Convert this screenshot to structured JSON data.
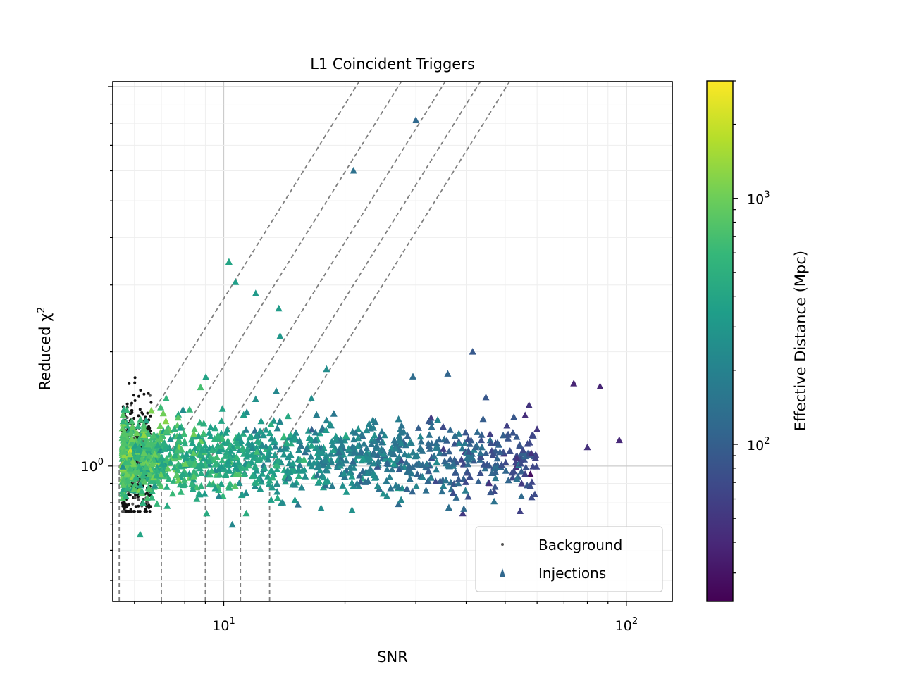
{
  "chart_data": {
    "type": "scatter",
    "title": "L1 Coincident Triggers",
    "xlabel": "SNR",
    "ylabel_main": "Reduced χ",
    "ylabel_sup": "2",
    "x_scale": "log",
    "y_scale": "log",
    "xlim": [
      5.3,
      130
    ],
    "ylim": [
      0.44,
      10.3
    ],
    "grid": true,
    "x_ticks": [
      {
        "value": 10,
        "base": "10",
        "exp": "1"
      },
      {
        "value": 100,
        "base": "10",
        "exp": "2"
      }
    ],
    "y_ticks": [
      {
        "value": 1,
        "base": "10",
        "exp": "0"
      }
    ],
    "legend": {
      "position": "lower right",
      "entries": [
        {
          "label": "Background",
          "marker": "dot",
          "color": "#555555"
        },
        {
          "label": "Injections",
          "marker": "triangle",
          "color": "#31688e"
        }
      ]
    },
    "colorbar": {
      "label": "Effective Distance (Mpc)",
      "scale": "log",
      "range": [
        23,
        3000
      ],
      "ticks": [
        {
          "value": 100,
          "base": "10",
          "exp": "2"
        },
        {
          "value": 1000,
          "base": "10",
          "exp": "3"
        }
      ],
      "colormap": [
        "#440154",
        "#482878",
        "#3e4989",
        "#31688e",
        "#26828e",
        "#1f9e89",
        "#35b779",
        "#6ece58",
        "#b5de2b",
        "#fde725"
      ]
    },
    "threshold_curves": [
      {
        "snr_start": 5.5
      },
      {
        "snr_start": 7.0
      },
      {
        "snr_start": 9.0
      },
      {
        "snr_start": 11.0
      },
      {
        "snr_start": 13.0
      }
    ],
    "background_cluster": {
      "snr_range": [
        5.6,
        6.6
      ],
      "chisq_range": [
        0.76,
        1.75
      ],
      "count": 650
    },
    "series": [
      {
        "name": "Injections",
        "marker": "triangle",
        "notable_points": [
          {
            "x": 30.0,
            "y": 8.15,
            "dist": 120
          },
          {
            "x": 21.0,
            "y": 6.0,
            "dist": 140
          },
          {
            "x": 10.3,
            "y": 3.45,
            "dist": 400
          },
          {
            "x": 10.7,
            "y": 3.05,
            "dist": 350
          },
          {
            "x": 12.0,
            "y": 2.85,
            "dist": 320
          },
          {
            "x": 13.7,
            "y": 2.6,
            "dist": 330
          },
          {
            "x": 13.8,
            "y": 2.2,
            "dist": 300
          },
          {
            "x": 41.5,
            "y": 2.0,
            "dist": 90
          },
          {
            "x": 36.0,
            "y": 1.75,
            "dist": 110
          },
          {
            "x": 29.5,
            "y": 1.72,
            "dist": 130
          },
          {
            "x": 18.0,
            "y": 1.8,
            "dist": 250
          },
          {
            "x": 96.0,
            "y": 1.17,
            "dist": 40
          },
          {
            "x": 80.0,
            "y": 1.12,
            "dist": 45
          },
          {
            "x": 74.0,
            "y": 1.65,
            "dist": 38
          },
          {
            "x": 86.0,
            "y": 1.62,
            "dist": 38
          },
          {
            "x": 10.5,
            "y": 0.7,
            "dist": 220
          },
          {
            "x": 6.2,
            "y": 0.66,
            "dist": 400
          },
          {
            "x": 6.3,
            "y": 0.8,
            "dist": 500
          },
          {
            "x": 52.0,
            "y": 0.96,
            "dist": 70
          },
          {
            "x": 60.0,
            "y": 1.25,
            "dist": 50
          }
        ],
        "bulk": {
          "snr_range": [
            5.6,
            60
          ],
          "chisq_center": 1.05,
          "count": 1400
        }
      }
    ]
  }
}
